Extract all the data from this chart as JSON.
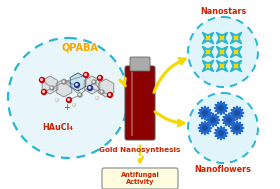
{
  "bg_color": "#ffffff",
  "border_color": "#c8c8c8",
  "title": "Gold Nanosynthesis",
  "antifungal_label": "Antifungal\nActivity",
  "nanostars_label": "Nanostars",
  "nanoflowers_label": "Nanoflowers",
  "qpaba_label": "QPABA",
  "haucl4_label": "HAuCl₄",
  "left_circle_color": "#29b6d4",
  "arrow_color": "#f5d800",
  "title_color": "#cc2200",
  "nanostars_label_color": "#cc2200",
  "nanoflowers_label_color": "#cc2200",
  "qpaba_color": "#f5a800",
  "haucl4_color": "#cc2200",
  "antifungal_color": "#cc2200",
  "star_color_outer": "#29b6d4",
  "star_color_inner": "#f5d800",
  "flower_color": "#2266cc",
  "vial_body_color": "#8b0000",
  "vial_cap_color": "#999999",
  "circle_fill": "#e0f4fb",
  "left_circle_fill": "#e8f6fb"
}
